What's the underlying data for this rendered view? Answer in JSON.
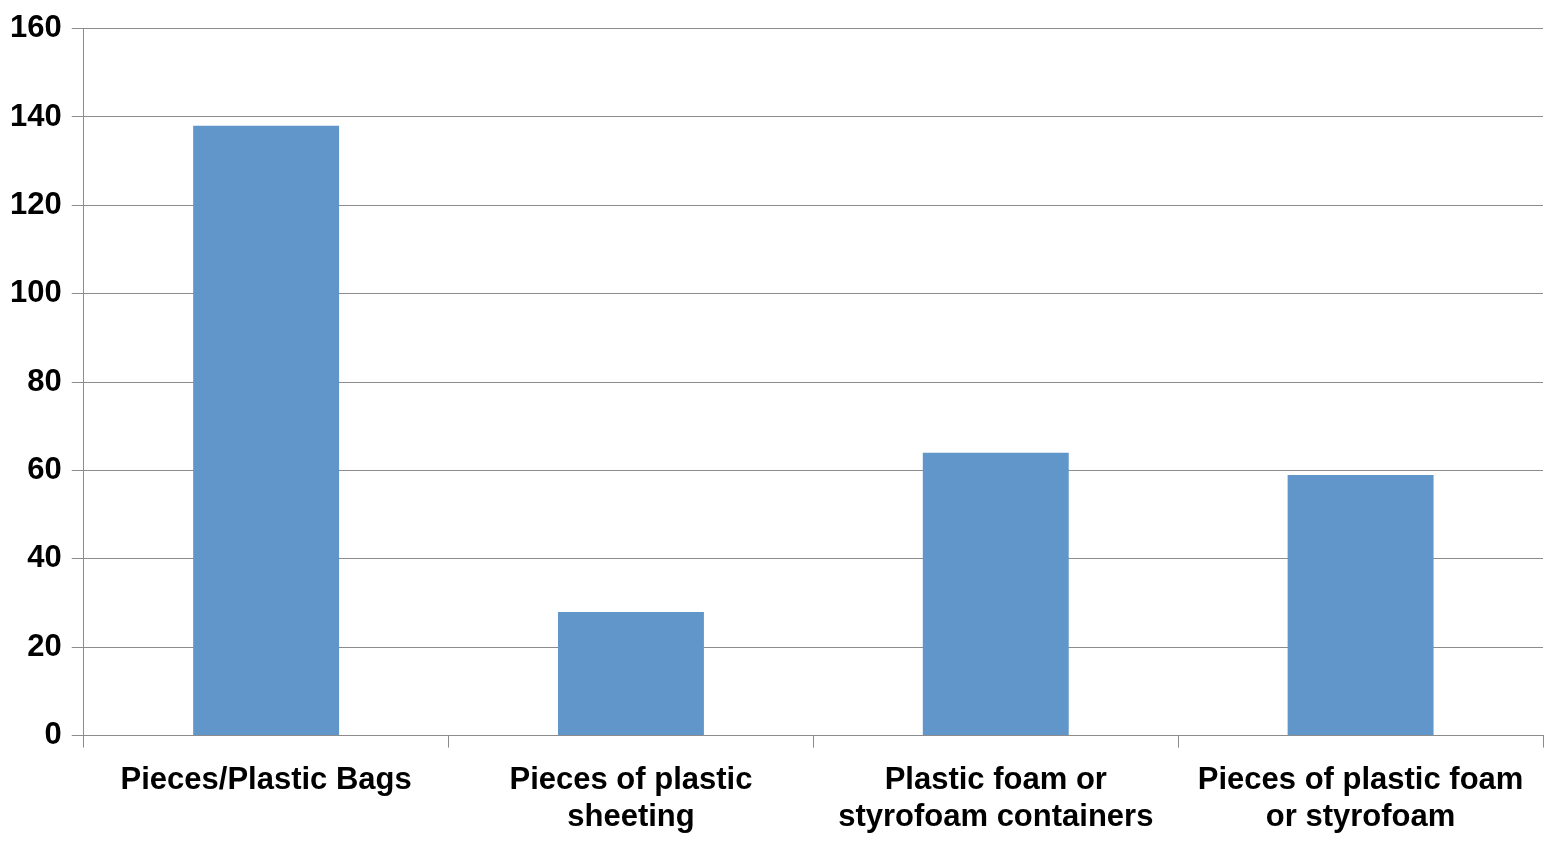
{
  "chart_data": {
    "type": "bar",
    "categories": [
      "Pieces/Plastic Bags",
      "Pieces of plastic sheeting",
      "Plastic foam or styrofoam containers",
      "Pieces of plastic foam or styrofoam"
    ],
    "values": [
      138,
      28,
      64,
      59
    ],
    "color": "#6096c9",
    "ylim": [
      0,
      160
    ],
    "yticks": [
      0,
      20,
      40,
      60,
      80,
      100,
      120,
      140,
      160
    ],
    "grid": "y",
    "legend": false
  }
}
